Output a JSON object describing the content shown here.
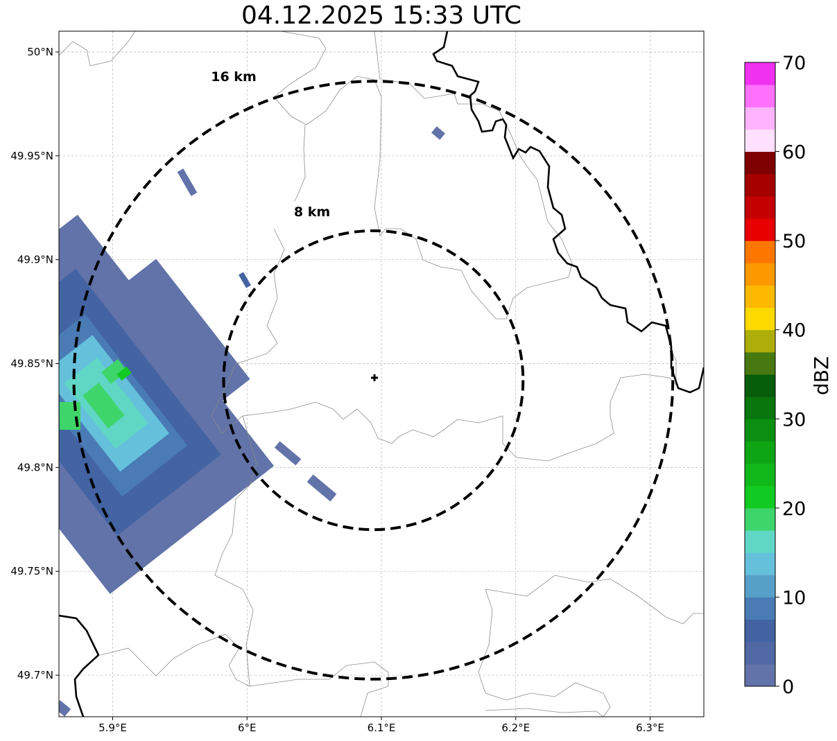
{
  "title": "04.12.2025 15:33 UTC",
  "map": {
    "lon_range": [
      5.86,
      6.34
    ],
    "lat_range": [
      49.68,
      50.01
    ],
    "lon_ticks": [
      {
        "value": 5.9,
        "label": "5.9°E"
      },
      {
        "value": 6.0,
        "label": "6°E"
      },
      {
        "value": 6.1,
        "label": "6.1°E"
      },
      {
        "value": 6.2,
        "label": "6.2°E"
      },
      {
        "value": 6.3,
        "label": "6.3°E"
      }
    ],
    "lat_ticks": [
      {
        "value": 50.0,
        "label": "50°N"
      },
      {
        "value": 49.95,
        "label": "49.95°N"
      },
      {
        "value": 49.9,
        "label": "49.9°N"
      },
      {
        "value": 49.85,
        "label": "49.85°N"
      },
      {
        "value": 49.8,
        "label": "49.8°N"
      },
      {
        "value": 49.75,
        "label": "49.75°N"
      },
      {
        "value": 49.7,
        "label": "49.7°N"
      }
    ],
    "radar_site": {
      "lon": 6.094,
      "lat": 49.842
    },
    "range_rings": [
      {
        "radius_km": 8,
        "label": "8 km"
      },
      {
        "radius_km": 16,
        "label": "16 km"
      }
    ],
    "grid_lines": true
  },
  "colorbar": {
    "label": "dBZ",
    "min": 0,
    "max": 70,
    "ticks": [
      "0",
      "10",
      "20",
      "30",
      "40",
      "50",
      "60",
      "70"
    ],
    "colors": [
      "#6173a8",
      "#5068a3",
      "#4363a3",
      "#4a7bb5",
      "#56a0c8",
      "#65c0dc",
      "#60d6c4",
      "#3ed56a",
      "#12cb22",
      "#11b81a",
      "#0ea515",
      "#0b8f11",
      "#09760d",
      "#065d0a",
      "#477910",
      "#aeae0a",
      "#fdd900",
      "#fdb800",
      "#fd9800",
      "#fd7700",
      "#e60000",
      "#c50000",
      "#a40000",
      "#7f0000",
      "#ffe0ff",
      "#ffb4ff",
      "#ff70ff",
      "#f032f0"
    ]
  }
}
